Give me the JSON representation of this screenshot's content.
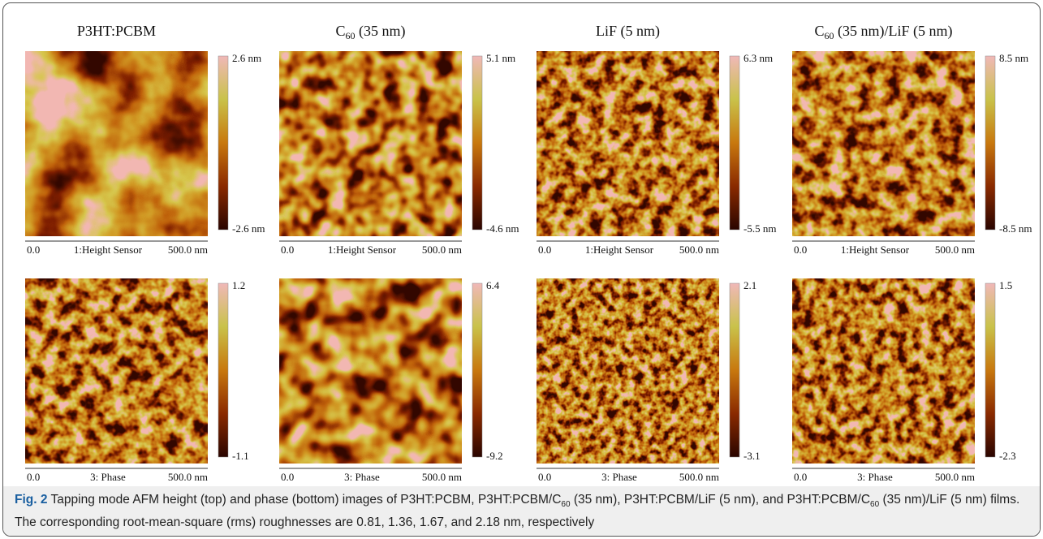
{
  "panels_titles": [
    [
      "P3HT:PCBM"
    ],
    [
      "C",
      "60",
      " (35 nm)"
    ],
    [
      "LiF (5 nm)"
    ],
    [
      "C",
      "60",
      " (35 nm)/LiF (5 nm)"
    ]
  ],
  "axis": {
    "start": "0.0",
    "end": "500.0 nm"
  },
  "rows": [
    {
      "channel": "1:Height Sensor",
      "images": [
        {
          "max": "2.6 nm",
          "min": "-2.6 nm"
        },
        {
          "max": "5.1 nm",
          "min": "-4.6 nm"
        },
        {
          "max": "6.3 nm",
          "min": "-5.5 nm"
        },
        {
          "max": "8.5 nm",
          "min": "-8.5 nm"
        }
      ]
    },
    {
      "channel": "3: Phase",
      "images": [
        {
          "max": "1.2",
          "min": "-1.1"
        },
        {
          "max": "6.4",
          "min": "-9.2"
        },
        {
          "max": "2.1",
          "min": "-3.1"
        },
        {
          "max": "1.5",
          "min": "-2.3"
        }
      ]
    }
  ],
  "caption": {
    "label": "Fig. 2",
    "text": [
      "Tapping mode AFM height (top) and phase (bottom) images of P3HT:PCBM, P3HT:PCBM/C",
      "60",
      " (35 nm), P3HT:PCBM/LiF (5 nm), and P3HT:PCBM/C",
      "60",
      " (35 nm)/LiF (5 nm) films. The corresponding root-mean-square (rms) roughnesses are 0.81, 1.36, 1.67, and 2.18 nm, respectively"
    ]
  }
}
